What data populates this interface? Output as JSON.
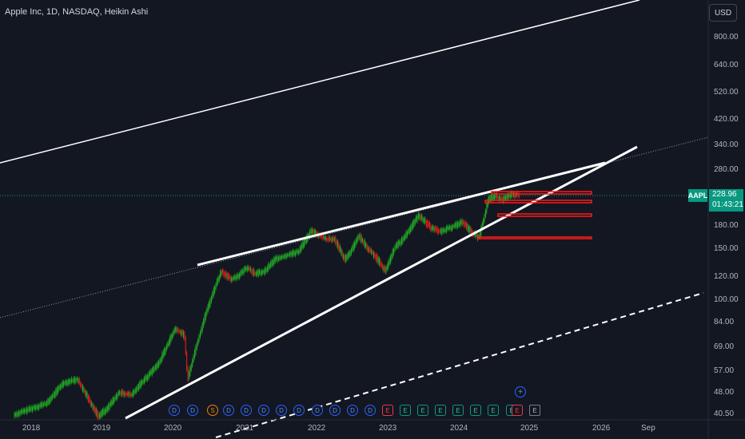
{
  "header": {
    "title": "Apple Inc, 1D, NASDAQ, Heikin Ashi",
    "currency": "USD"
  },
  "price_scale": {
    "ticks": [
      "800.00",
      "640.00",
      "520.00",
      "420.00",
      "340.00",
      "280.00",
      "180.00",
      "150.00",
      "120.00",
      "100.00",
      "84.00",
      "69.00",
      "57.00",
      "48.00",
      "40.50"
    ]
  },
  "time_scale": {
    "ticks": [
      "2018",
      "2019",
      "2020",
      "2021",
      "2022",
      "2023",
      "2024",
      "2025",
      "2026",
      "Sep"
    ]
  },
  "last_price": {
    "symbol": "AAPL",
    "price": "228.96",
    "countdown": "01:43:21"
  },
  "events": [
    {
      "label": "D",
      "type": "dividend"
    },
    {
      "label": "D",
      "type": "dividend"
    },
    {
      "label": "S",
      "type": "split"
    },
    {
      "label": "D",
      "type": "dividend"
    },
    {
      "label": "D",
      "type": "dividend"
    },
    {
      "label": "D",
      "type": "dividend"
    },
    {
      "label": "D",
      "type": "dividend"
    },
    {
      "label": "D",
      "type": "dividend"
    },
    {
      "label": "D",
      "type": "dividend"
    },
    {
      "label": "D",
      "type": "dividend"
    },
    {
      "label": "D",
      "type": "dividend"
    },
    {
      "label": "D",
      "type": "dividend"
    },
    {
      "label": "E",
      "type": "earnings-miss"
    },
    {
      "label": "E",
      "type": "earnings-beat"
    },
    {
      "label": "E",
      "type": "earnings-beat"
    },
    {
      "label": "E",
      "type": "earnings-beat"
    },
    {
      "label": "E",
      "type": "earnings-beat"
    },
    {
      "label": "E",
      "type": "earnings-beat"
    },
    {
      "label": "E",
      "type": "earnings-beat"
    },
    {
      "label": "E",
      "type": "earnings-beat"
    },
    {
      "label": "E",
      "type": "earnings-miss"
    },
    {
      "label": "E",
      "type": "earnings-upcoming"
    }
  ],
  "colors": {
    "background": "#131722",
    "up": "#089981",
    "down": "#f23645",
    "green_candle": "#22ab24",
    "red_candle": "#e01e1e",
    "drawing": "#ffffff",
    "zone": "#ff0000"
  }
}
